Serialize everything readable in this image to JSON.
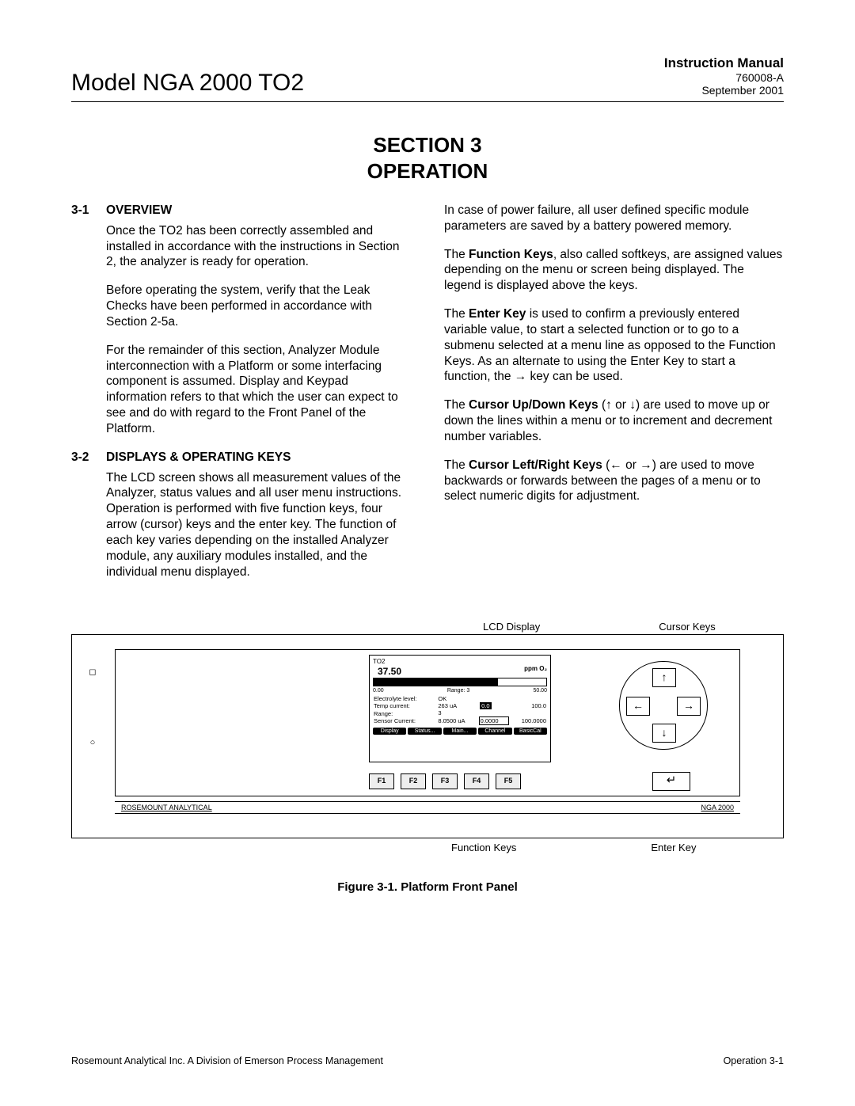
{
  "header": {
    "model": "Model NGA 2000 TO2",
    "manual": "Instruction Manual",
    "docnum": "760008-A",
    "date": "September 2001"
  },
  "section": {
    "line1": "SECTION 3",
    "line2": "OPERATION"
  },
  "s31": {
    "num": "3-1",
    "title": "OVERVIEW",
    "p1": "Once the TO2 has been correctly assembled and installed in accordance with the instructions in Section 2, the analyzer is ready for operation.",
    "p2": "Before operating the system, verify that the Leak Checks have been performed in accordance with Section 2-5a.",
    "p3": "For the remainder of this section, Analyzer Module interconnection with a Platform or some interfacing component is assumed. Display and Keypad information refers to that which the user can expect to see and do with regard to the Front Panel of the Platform."
  },
  "s32": {
    "num": "3-2",
    "title": "DISPLAYS & OPERATING KEYS",
    "p1": "The LCD screen shows all measurement values of the Analyzer, status values and all user menu instructions. Operation is performed with five function keys, four arrow (cursor) keys and the enter key. The function of each key varies depending on the installed Analyzer module, any auxiliary modules installed, and the individual menu displayed."
  },
  "right": {
    "p1": "In case of power failure, all user defined specific module parameters are saved by a battery powered memory.",
    "fk_b": "Function Keys",
    "fk_t": ", also called softkeys, are assigned values depending on the menu or screen being displayed. The legend is displayed above the keys.",
    "ek_b": "Enter Key",
    "ek_t": " is used to confirm a previously entered variable value, to start a selected function or to go to a submenu selected at a menu line as opposed to the Function Keys. As an alternate to using the Enter Key to start a function, the → key can be used.",
    "cud_b": "Cursor Up/Down Keys",
    "cud_t": " (↑ or ↓) are used to move up or down the lines within a menu or to increment and decrement number variables.",
    "clr_b": "Cursor Left/Right Keys",
    "clr_t": " (← or →) are used to move backwards or forwards between the pages of a menu or to select numeric digits for adjustment."
  },
  "fig": {
    "lcd_label": "LCD Display",
    "cursor_label": "Cursor Keys",
    "fn_label": "Function Keys",
    "enter_label": "Enter Key",
    "caption": "Figure 3-1.  Platform Front Panel",
    "brand": "ROSEMOUNT ANALYTICAL",
    "prod": "NGA 2000",
    "lcd": {
      "tag": "TO2",
      "value": "37.50",
      "unit": "ppm O₂",
      "scale_lo": "0.00",
      "scale_mid": "Range: 3",
      "scale_hi": "50.00",
      "r1a": "Electrolyte level:",
      "r1b": "OK",
      "r2a": "Temp current:",
      "r2b": "263 uA",
      "r2c": "0.0",
      "r2d": "100.0",
      "r3a": "Range:",
      "r3b": "3",
      "r4a": "Sensor Current:",
      "r4b": "8.0500 uA",
      "r4c": "0.0000",
      "r4d": "100.0000",
      "sk": [
        "Display",
        "Status...",
        "Main...",
        "Channel",
        "BasicCal"
      ]
    },
    "fkeys": [
      "F1",
      "F2",
      "F3",
      "F4",
      "F5"
    ],
    "arrows": {
      "u": "↑",
      "d": "↓",
      "l": "←",
      "r": "→"
    },
    "enter_sym": "↵"
  },
  "footer": {
    "left": "Rosemount Analytical Inc.    A Division of Emerson Process Management",
    "right": "Operation    3-1"
  }
}
